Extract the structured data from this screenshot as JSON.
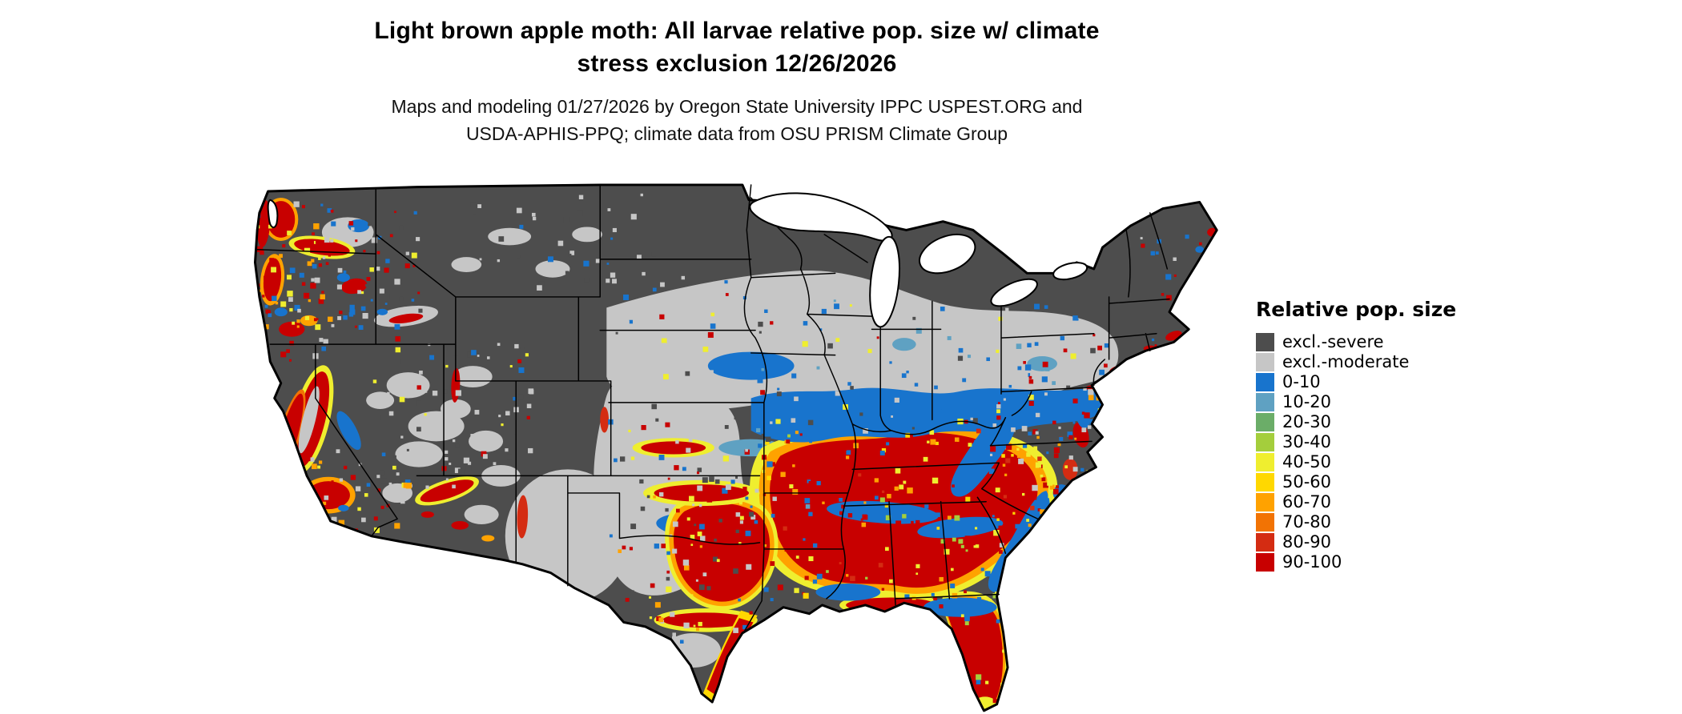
{
  "title": {
    "line1": "Light brown apple moth: All larvae relative pop. size w/ climate",
    "line2": "stress exclusion 12/26/2026"
  },
  "subtitle": {
    "line1": "Maps and modeling 01/27/2026 by Oregon State University IPPC USPEST.ORG and",
    "line2": "USDA-APHIS-PPQ; climate data from OSU PRISM Climate Group"
  },
  "legend": {
    "title": "Relative pop. size",
    "items": [
      {
        "label": "excl.-severe",
        "key": "sev"
      },
      {
        "label": "excl.-moderate",
        "key": "mod"
      },
      {
        "label": "0-10",
        "key": "b1"
      },
      {
        "label": "10-20",
        "key": "b2"
      },
      {
        "label": "20-30",
        "key": "g1"
      },
      {
        "label": "30-40",
        "key": "g2"
      },
      {
        "label": "40-50",
        "key": "y1"
      },
      {
        "label": "50-60",
        "key": "y2"
      },
      {
        "label": "60-70",
        "key": "o1"
      },
      {
        "label": "70-80",
        "key": "o2"
      },
      {
        "label": "80-90",
        "key": "r1"
      },
      {
        "label": "90-100",
        "key": "r2"
      }
    ]
  },
  "palette": {
    "sev": "#4D4D4D",
    "mod": "#C6C6C6",
    "b1": "#1874CD",
    "b2": "#5FA1C2",
    "g1": "#6BAD68",
    "g2": "#A4CE3C",
    "y1": "#EFEE2F",
    "y2": "#FFD800",
    "o1": "#FFA200",
    "o2": "#F27304",
    "r1": "#D42C12",
    "r2": "#C80000"
  },
  "map": {
    "name": "Contiguous United States raster map of relative population size",
    "border_color": "#000000",
    "water_color": "#FFFFFF"
  }
}
